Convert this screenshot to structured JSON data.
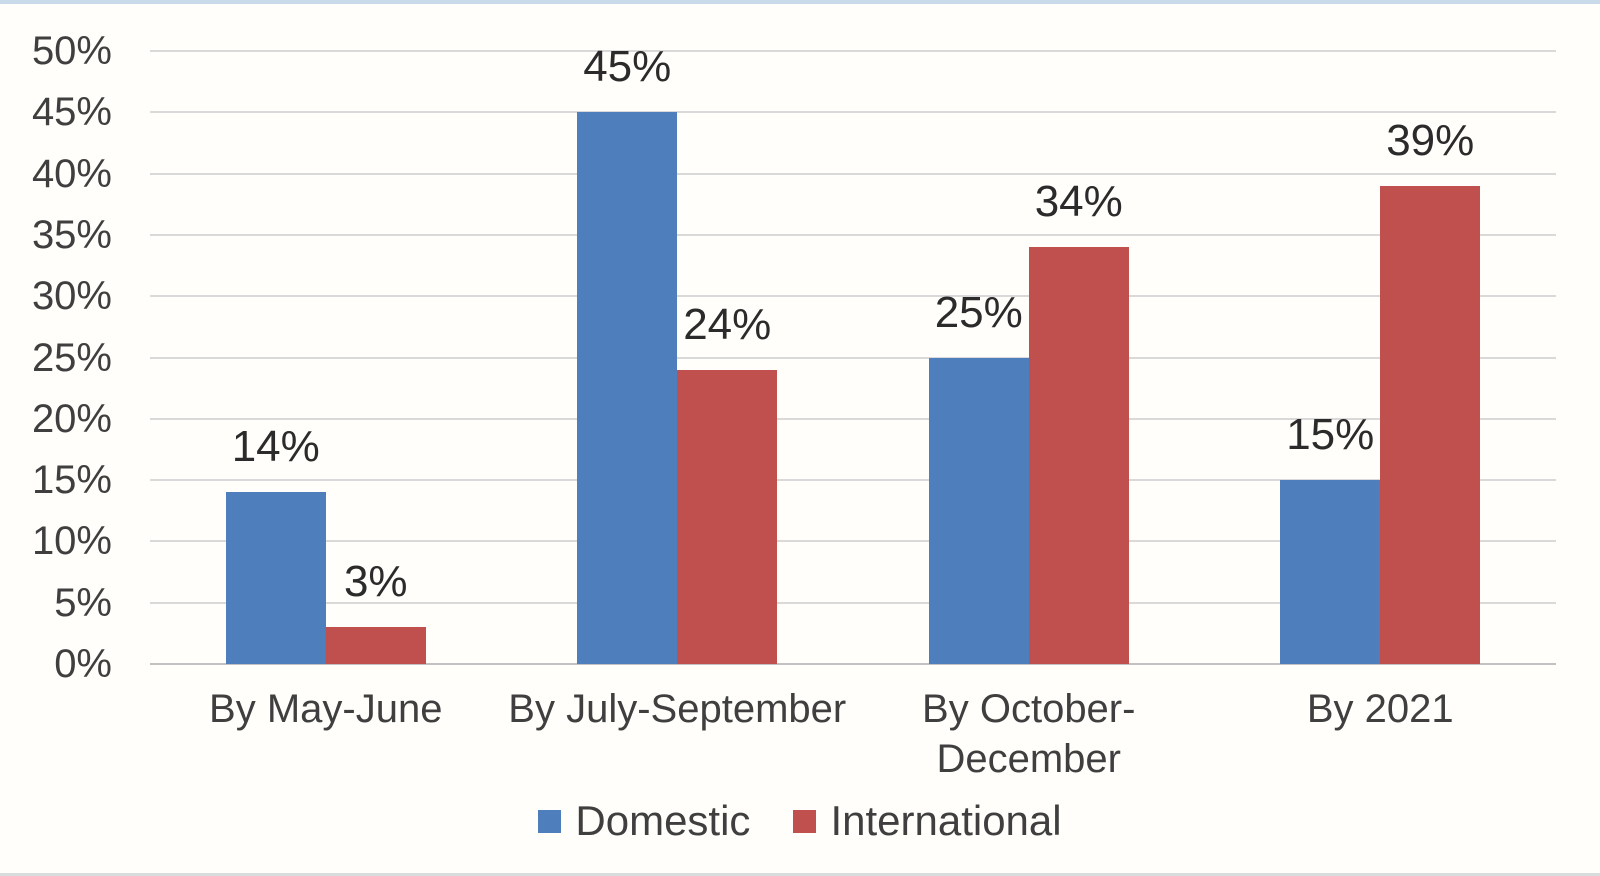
{
  "chart_data": {
    "type": "bar",
    "categories": [
      "By May-June",
      "By July-September",
      "By October-\nDecember",
      "By 2021"
    ],
    "series": [
      {
        "name": "Domestic",
        "color": "#4E7FBC",
        "values": [
          14,
          45,
          25,
          15
        ],
        "labels": [
          "14%",
          "45%",
          "25%",
          "15%"
        ]
      },
      {
        "name": "International",
        "color": "#C0504D",
        "values": [
          3,
          24,
          34,
          39
        ],
        "labels": [
          "3%",
          "24%",
          "34%",
          "39%"
        ]
      }
    ],
    "title": "",
    "xlabel": "",
    "ylabel": "",
    "ylim": [
      0,
      50
    ],
    "ytick_step": 5,
    "yticks": [
      "0%",
      "5%",
      "10%",
      "15%",
      "20%",
      "25%",
      "30%",
      "35%",
      "40%",
      "45%",
      "50%"
    ],
    "grid": true,
    "legend_position": "bottom"
  },
  "colors": {
    "background": "#FFFEFB",
    "gridline": "#D9D9D9",
    "axis_line": "#C2C2C2",
    "tick_text": "#3F3F3F",
    "data_label_text": "#2B2B2B",
    "legend_text": "#3F3F3F",
    "top_border": "#C9DAEA",
    "bottom_border": "#D8DCDC"
  }
}
